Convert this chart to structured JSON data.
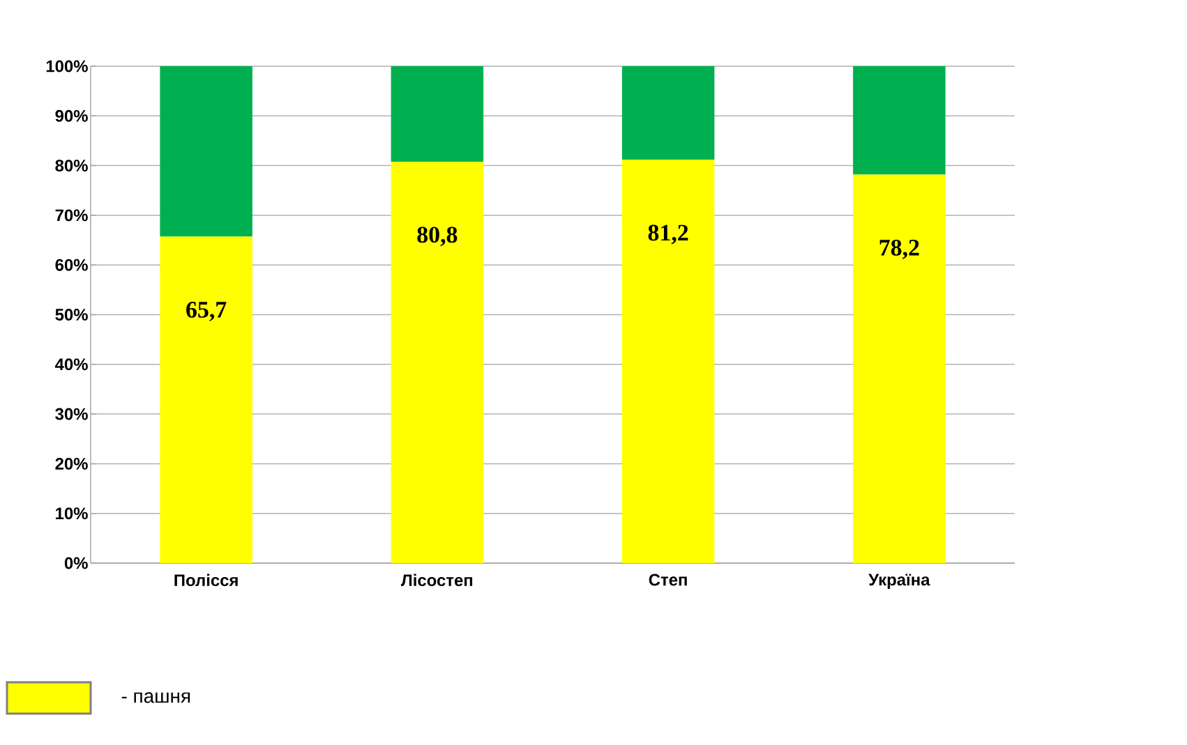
{
  "chart_data": {
    "type": "bar",
    "stacked": true,
    "categories": [
      "Полісся",
      "Лісостеп",
      "Степ",
      "Україна"
    ],
    "series": [
      {
        "name": "- пашня",
        "color": "#ffff00",
        "values": [
          65.7,
          80.8,
          81.2,
          78.2
        ],
        "value_labels": [
          "65,7",
          "80,8",
          "81,2",
          "78,2"
        ]
      },
      {
        "color": "#00b050",
        "values": [
          34.3,
          19.2,
          18.8,
          21.8
        ]
      }
    ],
    "ylim": [
      0,
      100
    ],
    "yticks": [
      {
        "value": 0,
        "label": "0%"
      },
      {
        "value": 10,
        "label": "10%"
      },
      {
        "value": 20,
        "label": "20%"
      },
      {
        "value": 30,
        "label": "30%"
      },
      {
        "value": 40,
        "label": "40%"
      },
      {
        "value": 50,
        "label": "50%"
      },
      {
        "value": 60,
        "label": "60%"
      },
      {
        "value": 70,
        "label": "70%"
      },
      {
        "value": 80,
        "label": "80%"
      },
      {
        "value": 90,
        "label": "90%"
      },
      {
        "value": 100,
        "label": "100%"
      }
    ],
    "grid": "y",
    "legend": "bottom left"
  }
}
